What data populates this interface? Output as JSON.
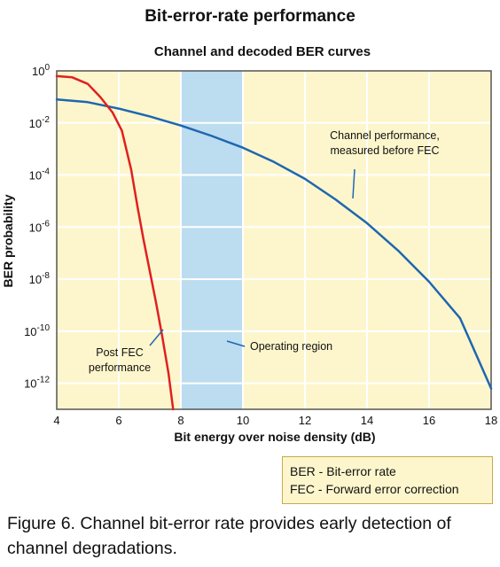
{
  "title": "Bit-error-rate performance",
  "subtitle": "Channel and decoded BER curves",
  "legend": [
    "BER - Bit-error rate",
    "FEC - Forward error correction"
  ],
  "caption": "Figure 6. Channel bit-error rate provides early detection of channel degradations.",
  "colors": {
    "plot_bg": "#fdf6cc",
    "region": "#bcdcf0",
    "channel_line": "#1e67b0",
    "fec_line": "#e02020",
    "grid": "#ffffff"
  },
  "chart_data": {
    "type": "line",
    "title": "Bit-error-rate performance",
    "subtitle": "Channel and decoded BER curves",
    "xlabel": "Bit energy over noise density (dB)",
    "ylabel": "BER probability",
    "xlim": [
      4,
      18
    ],
    "ylim_exp": [
      -13,
      0
    ],
    "y_scale": "log",
    "grid": true,
    "x_ticks": [
      4,
      6,
      8,
      10,
      12,
      14,
      16,
      18
    ],
    "y_ticks": [
      {
        "base": "10",
        "exp": "0",
        "value": 0
      },
      {
        "base": "10",
        "exp": "-2",
        "value": -2
      },
      {
        "base": "10",
        "exp": "-4",
        "value": -4
      },
      {
        "base": "10",
        "exp": "-6",
        "value": -6
      },
      {
        "base": "10",
        "exp": "-8",
        "value": -8
      },
      {
        "base": "10",
        "exp": "-10",
        "value": -10
      },
      {
        "base": "10",
        "exp": "-12",
        "value": -12
      }
    ],
    "region": {
      "x": [
        8,
        10
      ],
      "label": "Operating region"
    },
    "series": [
      {
        "id": "channel",
        "label_lines": [
          "Channel performance,",
          "measured before FEC"
        ],
        "x": [
          4,
          5,
          6,
          7,
          8,
          9,
          10,
          11,
          12,
          13,
          14,
          15,
          16,
          17,
          18
        ],
        "log10_y": [
          -1.1,
          -1.2,
          -1.45,
          -1.75,
          -2.1,
          -2.5,
          -2.95,
          -3.5,
          -4.15,
          -4.95,
          -5.85,
          -6.9,
          -8.1,
          -9.5,
          -12.2
        ]
      },
      {
        "id": "fec",
        "label_lines": [
          "Post FEC",
          "performance"
        ],
        "x": [
          4,
          4.5,
          5,
          5.4,
          5.8,
          6.1,
          6.4,
          6.6,
          6.8,
          7.0,
          7.2,
          7.4,
          7.6,
          7.75
        ],
        "log10_y": [
          -0.2,
          -0.25,
          -0.5,
          -1.0,
          -1.6,
          -2.3,
          -3.8,
          -5.2,
          -6.5,
          -7.7,
          -8.9,
          -10.2,
          -11.6,
          -13
        ]
      }
    ]
  }
}
